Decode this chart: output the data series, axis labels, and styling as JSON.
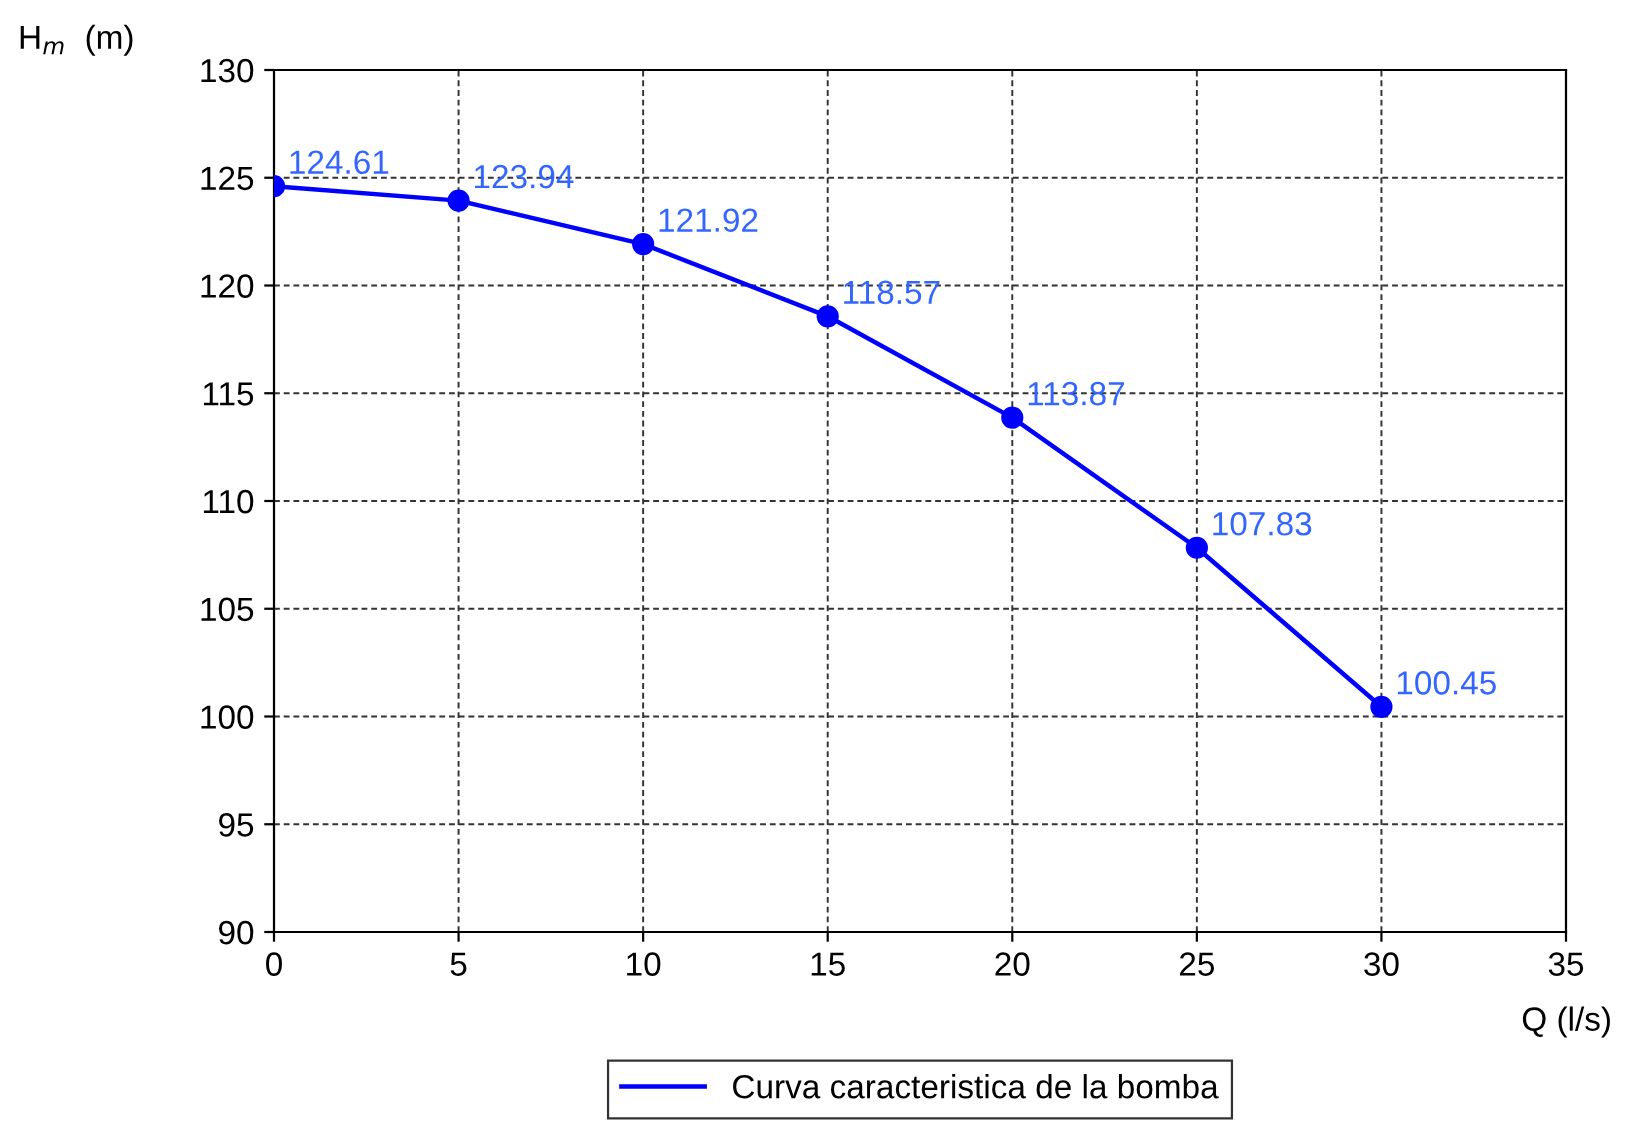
{
  "chart_data": {
    "type": "line",
    "ylabel": "H$_{m}$  (m)",
    "xlabel": "Q (l/s)",
    "x": [
      0,
      5,
      10,
      15,
      20,
      25,
      30
    ],
    "series": [
      {
        "name": "Curva caracteristica de la bomba",
        "color": "#0000ff",
        "values": [
          124.61,
          123.94,
          121.92,
          118.57,
          113.87,
          107.83,
          100.45
        ]
      }
    ],
    "xlim": [
      0,
      35
    ],
    "xticks": [
      0,
      5,
      10,
      15,
      20,
      25,
      30,
      35
    ],
    "ylim": [
      90,
      130
    ],
    "yticks": [
      90,
      95,
      100,
      105,
      110,
      115,
      120,
      125,
      130
    ],
    "grid": true,
    "legend": "bottom",
    "marker": "circle",
    "line_style": "solid",
    "data_labels": true
  }
}
